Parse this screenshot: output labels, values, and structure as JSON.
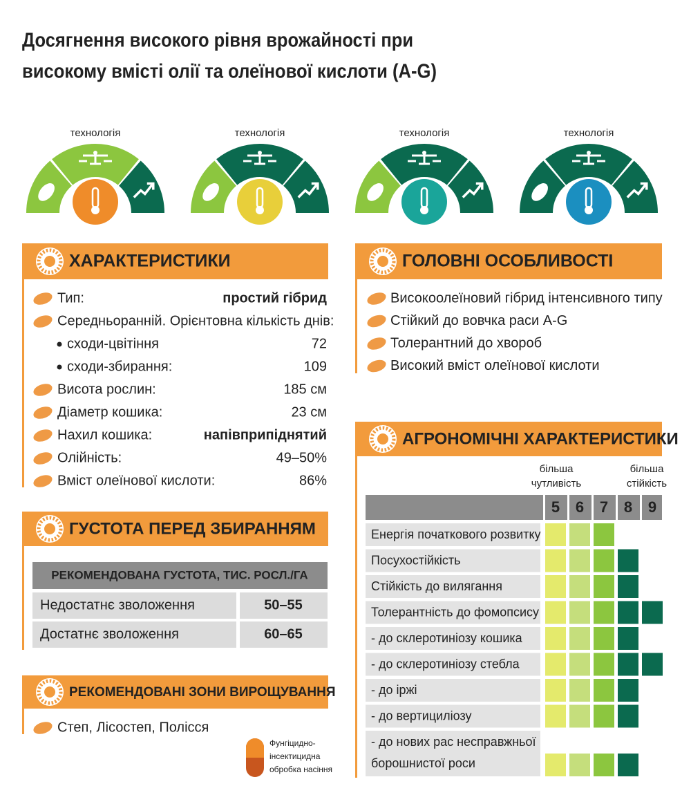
{
  "title": [
    "Досягнення високого рівня врожайності при",
    "високому вмісті олії та олеїнової кислоти (A-G)"
  ],
  "technologies": [
    {
      "label": "технологія",
      "colors": [
        "#8cc63f",
        "#8cc63f",
        "#0b6a4f"
      ],
      "center": "#ef8c2a"
    },
    {
      "label": "технологія",
      "colors": [
        "#8cc63f",
        "#0b6a4f",
        "#0b6a4f"
      ],
      "center": "#e8cf3a"
    },
    {
      "label": "технологія",
      "colors": [
        "#8cc63f",
        "#0b6a4f",
        "#0b6a4f"
      ],
      "center": "#1aa59a"
    },
    {
      "label": "технологія",
      "colors": [
        "#0b6a4f",
        "#0b6a4f",
        "#0b6a4f"
      ],
      "center": "#1b8fc0"
    }
  ],
  "characteristics": {
    "heading": "ХАРАКТЕРИСТИКИ",
    "items": [
      {
        "label": "Тип:",
        "value": "простий гібрид"
      },
      {
        "label": "Середньоранній. Орієнтовна кількість днів:",
        "subitems": [
          {
            "label": "сходи-цвітіння",
            "value": 72
          },
          {
            "label": "сходи-збирання:",
            "value": 109
          }
        ]
      },
      {
        "label": "Висота рослин:",
        "value": "185 см"
      },
      {
        "label": "Діаметр кошика:",
        "value": "23 см"
      },
      {
        "label": "Нахил кошика:",
        "value": "напівприпіднятий"
      },
      {
        "label": "Олійність:",
        "value": "49–50%"
      },
      {
        "label": "Вміст олеїнової кислоти:",
        "value": "86%"
      }
    ]
  },
  "features": {
    "heading": "ГОЛОВНІ ОСОБЛИВОСТІ",
    "items": [
      "Високоолеїновий гібрид інтенсивного типу",
      "Стійкий до вовчка раси A-G",
      "Толерантний до хвороб",
      "Високий вміст олеїнової кислоти"
    ]
  },
  "density": {
    "heading": "ГУСТОТА ПЕРЕД ЗБИРАННЯМ",
    "table": {
      "header": "РЕКОМЕНДОВАНА ГУСТОТА, ТИС. РОСЛ./ГА",
      "rows": [
        [
          "Недостатнє зволоження",
          "50–55"
        ],
        [
          "Достатнє зволоження",
          "60–65"
        ]
      ]
    }
  },
  "zones": {
    "heading": "РЕКОМЕНДОВАНІ ЗОНИ ВИРОЩУВАННЯ",
    "items": [
      "Степ, Лісостеп, Полісся"
    ]
  },
  "seed_treatment": [
    "Фунгіцидно-",
    "інсектицидна",
    "обробка насіння"
  ],
  "agronomic": {
    "heading": "АГРОНОМІЧНІ ХАРАКТЕРИСТИКИ",
    "low_label": [
      "більша",
      "чутливість"
    ],
    "high_label": [
      "більша",
      "стійкість"
    ],
    "scale": [
      5,
      6,
      7,
      8,
      9
    ],
    "scale_colors": [
      "#e4ea6c",
      "#c5de7c",
      "#8cc63f",
      "#0b6a4f",
      "#0b6a4f"
    ],
    "rows": [
      {
        "label": [
          "Енергія початкового розвитку"
        ],
        "score": 7
      },
      {
        "label": [
          "Посухостійкість"
        ],
        "score": 8
      },
      {
        "label": [
          "Стійкість до вилягання"
        ],
        "score": 8
      },
      {
        "label": [
          "Толерантність до фомопсису"
        ],
        "score": 9
      },
      {
        "label": [
          "- до склеротиніозу кошика"
        ],
        "score": 8
      },
      {
        "label": [
          "- до склеротиніозу стебла"
        ],
        "score": 9
      },
      {
        "label": [
          "- до іржі"
        ],
        "score": 8
      },
      {
        "label": [
          "- до вертициліозу"
        ],
        "score": 8
      },
      {
        "label": [
          "- до нових рас несправжньої",
          "борошнистої роси"
        ],
        "score": 8
      }
    ]
  }
}
